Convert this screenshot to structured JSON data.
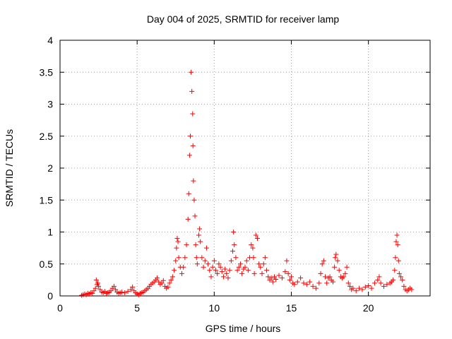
{
  "chart_data": {
    "type": "scatter",
    "title": "Day 004 of 2025, SRMTID for receiver lamp",
    "xlabel": "GPS time / hours",
    "ylabel": "SRMTID / TECUs",
    "xlim": [
      0,
      24
    ],
    "ylim": [
      0,
      4
    ],
    "xticks": [
      0,
      5,
      10,
      15,
      20
    ],
    "yticks": [
      0,
      0.5,
      1,
      1.5,
      2,
      2.5,
      3,
      3.5,
      4
    ],
    "ytick_labels": [
      "0",
      "0.5",
      "1",
      "1.5",
      "2",
      "2.5",
      "3",
      "3.5",
      "4"
    ],
    "grid": true,
    "marker": "+",
    "color": "#ff0000",
    "series": [
      {
        "name": "SRMTID",
        "points": [
          [
            1.4,
            0.01
          ],
          [
            1.5,
            0.02
          ],
          [
            1.6,
            0.03
          ],
          [
            1.7,
            0.02
          ],
          [
            1.8,
            0.04
          ],
          [
            1.9,
            0.03
          ],
          [
            2.0,
            0.05
          ],
          [
            2.1,
            0.04
          ],
          [
            2.2,
            0.08
          ],
          [
            2.3,
            0.12
          ],
          [
            2.35,
            0.25
          ],
          [
            2.4,
            0.18
          ],
          [
            2.45,
            0.2
          ],
          [
            2.5,
            0.15
          ],
          [
            2.6,
            0.1
          ],
          [
            2.7,
            0.06
          ],
          [
            2.8,
            0.05
          ],
          [
            2.9,
            0.07
          ],
          [
            3.0,
            0.04
          ],
          [
            3.1,
            0.05
          ],
          [
            3.2,
            0.06
          ],
          [
            3.3,
            0.08
          ],
          [
            3.4,
            0.12
          ],
          [
            3.5,
            0.15
          ],
          [
            3.6,
            0.1
          ],
          [
            3.7,
            0.06
          ],
          [
            3.8,
            0.04
          ],
          [
            3.9,
            0.05
          ],
          [
            4.0,
            0.06
          ],
          [
            4.2,
            0.05
          ],
          [
            4.4,
            0.07
          ],
          [
            4.6,
            0.1
          ],
          [
            4.7,
            0.14
          ],
          [
            4.8,
            0.08
          ],
          [
            4.9,
            0.05
          ],
          [
            5.0,
            0.03
          ],
          [
            5.1,
            0.02
          ],
          [
            5.2,
            0.04
          ],
          [
            5.3,
            0.05
          ],
          [
            5.4,
            0.06
          ],
          [
            5.5,
            0.08
          ],
          [
            5.6,
            0.1
          ],
          [
            5.7,
            0.12
          ],
          [
            5.8,
            0.15
          ],
          [
            5.9,
            0.18
          ],
          [
            6.0,
            0.2
          ],
          [
            6.1,
            0.22
          ],
          [
            6.2,
            0.25
          ],
          [
            6.3,
            0.28
          ],
          [
            6.4,
            0.22
          ],
          [
            6.5,
            0.18
          ],
          [
            6.6,
            0.2
          ],
          [
            6.7,
            0.24
          ],
          [
            6.8,
            0.15
          ],
          [
            6.9,
            0.12
          ],
          [
            7.0,
            0.14
          ],
          [
            7.1,
            0.2
          ],
          [
            7.2,
            0.25
          ],
          [
            7.3,
            0.3
          ],
          [
            7.4,
            0.4
          ],
          [
            7.5,
            0.55
          ],
          [
            7.55,
            0.75
          ],
          [
            7.6,
            0.9
          ],
          [
            7.65,
            0.85
          ],
          [
            7.7,
            0.6
          ],
          [
            7.8,
            0.45
          ],
          [
            7.9,
            0.35
          ],
          [
            8.0,
            0.45
          ],
          [
            8.1,
            0.6
          ],
          [
            8.2,
            0.8
          ],
          [
            8.3,
            1.2
          ],
          [
            8.35,
            1.6
          ],
          [
            8.4,
            2.2
          ],
          [
            8.45,
            2.5
          ],
          [
            8.5,
            3.5
          ],
          [
            8.55,
            3.2
          ],
          [
            8.6,
            2.85
          ],
          [
            8.62,
            2.35
          ],
          [
            8.65,
            1.8
          ],
          [
            8.7,
            1.5
          ],
          [
            8.75,
            1.25
          ],
          [
            8.8,
            0.8
          ],
          [
            8.85,
            0.6
          ],
          [
            8.9,
            0.5
          ],
          [
            9.0,
            0.95
          ],
          [
            9.05,
            1.05
          ],
          [
            9.1,
            0.85
          ],
          [
            9.2,
            0.6
          ],
          [
            9.3,
            0.45
          ],
          [
            9.4,
            0.55
          ],
          [
            9.5,
            0.75
          ],
          [
            9.6,
            0.5
          ],
          [
            9.7,
            0.4
          ],
          [
            9.8,
            0.3
          ],
          [
            9.9,
            0.45
          ],
          [
            10.0,
            0.55
          ],
          [
            10.1,
            0.4
          ],
          [
            10.2,
            0.35
          ],
          [
            10.3,
            0.5
          ],
          [
            10.4,
            0.45
          ],
          [
            10.5,
            0.38
          ],
          [
            10.6,
            0.3
          ],
          [
            10.7,
            0.42
          ],
          [
            10.8,
            0.35
          ],
          [
            10.9,
            0.28
          ],
          [
            11.0,
            0.4
          ],
          [
            11.1,
            0.55
          ],
          [
            11.2,
            0.7
          ],
          [
            11.25,
            1.0
          ],
          [
            11.3,
            0.8
          ],
          [
            11.4,
            0.6
          ],
          [
            11.5,
            0.4
          ],
          [
            11.6,
            0.45
          ],
          [
            11.7,
            0.5
          ],
          [
            11.8,
            0.35
          ],
          [
            11.9,
            0.42
          ],
          [
            12.0,
            0.45
          ],
          [
            12.1,
            0.55
          ],
          [
            12.2,
            0.4
          ],
          [
            12.3,
            0.6
          ],
          [
            12.4,
            0.8
          ],
          [
            12.5,
            0.75
          ],
          [
            12.55,
            0.6
          ],
          [
            12.6,
            0.35
          ],
          [
            12.7,
            0.95
          ],
          [
            12.8,
            0.9
          ],
          [
            12.9,
            0.5
          ],
          [
            13.0,
            0.45
          ],
          [
            13.1,
            0.35
          ],
          [
            13.2,
            0.5
          ],
          [
            13.3,
            0.6
          ],
          [
            13.4,
            0.4
          ],
          [
            13.5,
            0.3
          ],
          [
            13.6,
            0.25
          ],
          [
            13.7,
            0.28
          ],
          [
            13.8,
            0.22
          ],
          [
            13.9,
            0.3
          ],
          [
            14.0,
            0.26
          ],
          [
            14.2,
            0.32
          ],
          [
            14.4,
            0.28
          ],
          [
            14.6,
            0.38
          ],
          [
            14.7,
            0.55
          ],
          [
            14.8,
            0.35
          ],
          [
            14.9,
            0.25
          ],
          [
            15.0,
            0.3
          ],
          [
            15.1,
            0.2
          ],
          [
            15.2,
            0.18
          ],
          [
            15.4,
            0.22
          ],
          [
            15.6,
            0.28
          ],
          [
            15.8,
            0.2
          ],
          [
            16.0,
            0.18
          ],
          [
            16.2,
            0.22
          ],
          [
            16.4,
            0.15
          ],
          [
            16.6,
            0.12
          ],
          [
            16.8,
            0.2
          ],
          [
            16.9,
            0.35
          ],
          [
            17.0,
            0.5
          ],
          [
            17.1,
            0.55
          ],
          [
            17.2,
            0.3
          ],
          [
            17.3,
            0.2
          ],
          [
            17.4,
            0.28
          ],
          [
            17.5,
            0.3
          ],
          [
            17.6,
            0.25
          ],
          [
            17.7,
            0.22
          ],
          [
            17.8,
            0.45
          ],
          [
            17.85,
            0.6
          ],
          [
            17.9,
            0.65
          ],
          [
            18.0,
            0.55
          ],
          [
            18.1,
            0.4
          ],
          [
            18.2,
            0.3
          ],
          [
            18.3,
            0.28
          ],
          [
            18.4,
            0.3
          ],
          [
            18.5,
            0.35
          ],
          [
            18.6,
            0.45
          ],
          [
            18.7,
            0.2
          ],
          [
            18.8,
            0.15
          ],
          [
            18.9,
            0.1
          ],
          [
            19.0,
            0.12
          ],
          [
            19.2,
            0.08
          ],
          [
            19.4,
            0.12
          ],
          [
            19.6,
            0.1
          ],
          [
            19.8,
            0.14
          ],
          [
            20.0,
            0.16
          ],
          [
            20.2,
            0.12
          ],
          [
            20.4,
            0.2
          ],
          [
            20.6,
            0.25
          ],
          [
            20.7,
            0.3
          ],
          [
            20.8,
            0.2
          ],
          [
            21.0,
            0.15
          ],
          [
            21.2,
            0.18
          ],
          [
            21.4,
            0.2
          ],
          [
            21.5,
            0.22
          ],
          [
            21.6,
            0.25
          ],
          [
            21.7,
            0.4
          ],
          [
            21.75,
            0.6
          ],
          [
            21.8,
            0.85
          ],
          [
            21.85,
            0.95
          ],
          [
            21.9,
            0.8
          ],
          [
            21.95,
            0.55
          ],
          [
            22.0,
            0.35
          ],
          [
            22.1,
            0.3
          ],
          [
            22.2,
            0.25
          ],
          [
            22.3,
            0.15
          ],
          [
            22.4,
            0.1
          ],
          [
            22.5,
            0.08
          ],
          [
            22.6,
            0.1
          ],
          [
            22.7,
            0.12
          ],
          [
            22.8,
            0.1
          ]
        ]
      }
    ]
  }
}
